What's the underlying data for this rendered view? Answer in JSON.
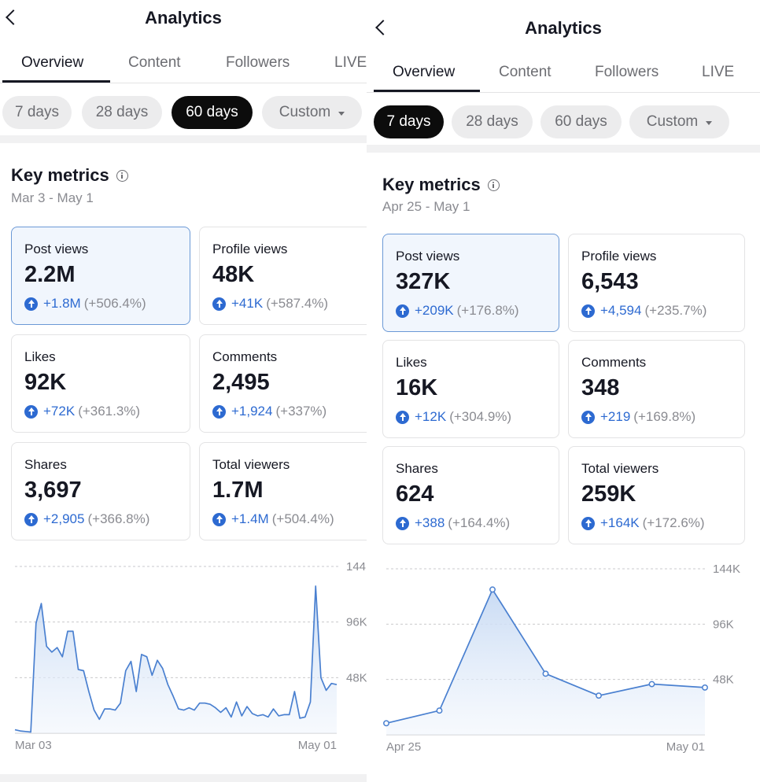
{
  "left": {
    "title": "Analytics",
    "tabs": [
      "Overview",
      "Content",
      "Followers",
      "LIVE"
    ],
    "chips": [
      "7 days",
      "28 days",
      "60 days",
      "Custom"
    ],
    "selected_chip": "60 days",
    "key_metrics": {
      "title": "Key metrics",
      "range": "Mar 3 - May 1"
    },
    "metrics": [
      {
        "label": "Post views",
        "value": "2.2M",
        "delta": "+1.8M",
        "pct": "(+506.4%)"
      },
      {
        "label": "Profile views",
        "value": "48K",
        "delta": "+41K",
        "pct": "(+587.4%)"
      },
      {
        "label": "Likes",
        "value": "92K",
        "delta": "+72K",
        "pct": "(+361.3%)"
      },
      {
        "label": "Comments",
        "value": "2,495",
        "delta": "+1,924",
        "pct": "(+337%)"
      },
      {
        "label": "Shares",
        "value": "3,697",
        "delta": "+2,905",
        "pct": "(+366.8%)"
      },
      {
        "label": "Total viewers",
        "value": "1.7M",
        "delta": "+1.4M",
        "pct": "(+504.4%)"
      }
    ]
  },
  "right": {
    "title": "Analytics",
    "tabs": [
      "Overview",
      "Content",
      "Followers",
      "LIVE"
    ],
    "chips": [
      "7 days",
      "28 days",
      "60 days",
      "Custom"
    ],
    "selected_chip": "7 days",
    "key_metrics": {
      "title": "Key metrics",
      "range": "Apr 25 - May 1"
    },
    "metrics": [
      {
        "label": "Post views",
        "value": "327K",
        "delta": "+209K",
        "pct": "(+176.8%)"
      },
      {
        "label": "Profile views",
        "value": "6,543",
        "delta": "+4,594",
        "pct": "(+235.7%)"
      },
      {
        "label": "Likes",
        "value": "16K",
        "delta": "+12K",
        "pct": "(+304.9%)"
      },
      {
        "label": "Comments",
        "value": "348",
        "delta": "+219",
        "pct": "(+169.8%)"
      },
      {
        "label": "Shares",
        "value": "624",
        "delta": "+388",
        "pct": "(+164.4%)"
      },
      {
        "label": "Total viewers",
        "value": "259K",
        "delta": "+164K",
        "pct": "(+172.6%)"
      }
    ]
  },
  "colors": {
    "accent": "#2d6ad1",
    "line": "#4a80d0",
    "selected_card_bg": "#f1f6fd"
  },
  "chart_data": [
    {
      "type": "area",
      "x_start": "Mar 03",
      "x_end": "May 01",
      "y_ticks": [
        "144K",
        "96K",
        "48K"
      ],
      "y_tick_values": [
        144000,
        96000,
        48000
      ],
      "ylim": [
        0,
        144000
      ],
      "grid": true,
      "values": [
        3000,
        2000,
        1500,
        1000,
        95000,
        112000,
        75000,
        70000,
        74000,
        66000,
        88000,
        88000,
        55000,
        54000,
        36000,
        20000,
        12000,
        21000,
        21000,
        20000,
        26000,
        54000,
        62000,
        36000,
        68000,
        66000,
        50000,
        63000,
        56000,
        42000,
        32000,
        21000,
        20000,
        22000,
        20000,
        26000,
        26000,
        25000,
        22000,
        18000,
        22000,
        14000,
        27000,
        15000,
        23000,
        17000,
        15000,
        16000,
        14000,
        21000,
        15000,
        16000,
        16000,
        36000,
        13000,
        14000,
        27000,
        127000,
        48000,
        37000,
        43000,
        42000
      ]
    },
    {
      "type": "line",
      "x_start": "Apr 25",
      "x_end": "May 01",
      "y_ticks": [
        "144K",
        "96K",
        "48K"
      ],
      "y_tick_values": [
        144000,
        96000,
        48000
      ],
      "ylim": [
        0,
        144000
      ],
      "grid": true,
      "values": [
        10000,
        21000,
        126000,
        53000,
        34000,
        44000,
        41000
      ]
    }
  ]
}
